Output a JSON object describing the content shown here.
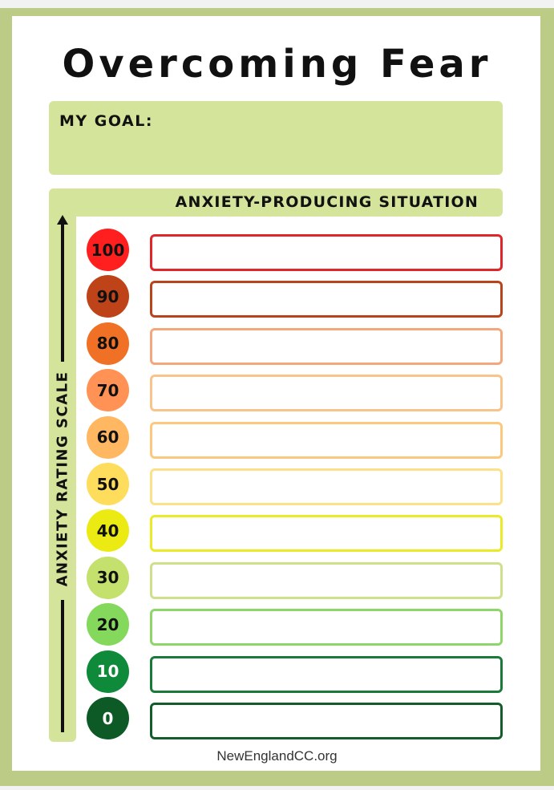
{
  "title": "Overcoming Fear",
  "goal_label": "MY GOAL:",
  "header_label": "ANXIETY-PRODUCING SITUATION",
  "scale_label": "ANXIETY RATING SCALE",
  "footer": "NewEnglandCC.org",
  "rows": [
    {
      "value": "100",
      "circle_color": "#ff1f1f",
      "border_color": "#e0262a"
    },
    {
      "value": "90",
      "circle_color": "#bf4318",
      "border_color": "#b9441c"
    },
    {
      "value": "80",
      "circle_color": "#f07126",
      "border_color": "#f2a87c"
    },
    {
      "value": "70",
      "circle_color": "#ff9254",
      "border_color": "#f8c48a"
    },
    {
      "value": "60",
      "circle_color": "#ffb761",
      "border_color": "#fcc87e"
    },
    {
      "value": "50",
      "circle_color": "#ffdd5c",
      "border_color": "#fde08a"
    },
    {
      "value": "40",
      "circle_color": "#ebeb13",
      "border_color": "#eaea26"
    },
    {
      "value": "30",
      "circle_color": "#c4e06d",
      "border_color": "#cde08a"
    },
    {
      "value": "20",
      "circle_color": "#84d85c",
      "border_color": "#8ed66a"
    },
    {
      "value": "10",
      "circle_color": "#0f8a3a",
      "border_color": "#1a7a3a"
    },
    {
      "value": "0",
      "circle_color": "#0d5a27",
      "border_color": "#145c2c"
    }
  ]
}
